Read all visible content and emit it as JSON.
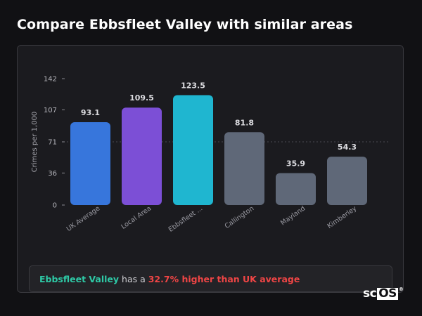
{
  "page": {
    "title": "Compare Ebbsfleet Valley with similar areas"
  },
  "chart_data": {
    "type": "bar",
    "ylabel": "Crimes per 1,000",
    "yticks": [
      0,
      36,
      71,
      107,
      142
    ],
    "ylim": [
      0,
      142
    ],
    "grid": false,
    "categories": [
      "UK Average",
      "Local Area",
      "Ebbsfleet ...",
      "Callington",
      "Mayland",
      "Kimberley"
    ],
    "values": [
      93.1,
      109.5,
      123.5,
      81.8,
      35.9,
      54.3
    ],
    "value_labels": [
      "93.1",
      "109.5",
      "123.5",
      "81.8",
      "35.9",
      "54.3"
    ],
    "colors": [
      "#3776dc",
      "#7c4fd6",
      "#1fb6d0",
      "#5f6878",
      "#5f6878",
      "#5f6878"
    ],
    "reference_line": 71
  },
  "summary": {
    "area": "Ebbsfleet Valley",
    "middle": " has a ",
    "stat": "32.7% higher than UK average"
  },
  "brand": {
    "prefix": "sc",
    "boxed": "OS",
    "mark": "®"
  },
  "colors": {
    "area_highlight": "#2ec9a6",
    "stat_highlight": "#ef4545"
  }
}
